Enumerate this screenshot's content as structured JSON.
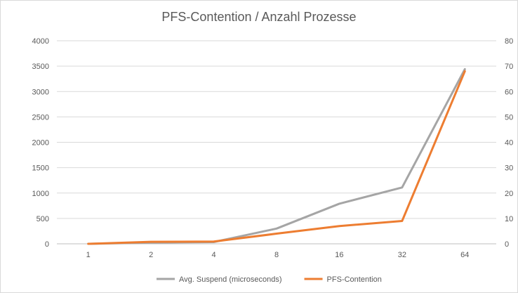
{
  "chart_data": {
    "type": "line",
    "title": "PFS-Contention / Anzahl Prozesse",
    "categories": [
      "1",
      "2",
      "4",
      "8",
      "16",
      "32",
      "64"
    ],
    "y_left": {
      "ticks": [
        "0",
        "500",
        "1000",
        "1500",
        "2000",
        "2500",
        "3000",
        "3500",
        "4000"
      ],
      "min": 0,
      "max": 4000
    },
    "y_right": {
      "ticks": [
        "0",
        "10",
        "20",
        "30",
        "40",
        "50",
        "60",
        "70",
        "80"
      ],
      "min": 0,
      "max": 80
    },
    "series": [
      {
        "name": "Avg. Suspend (microseconds)",
        "axis": "left",
        "color": "#a5a5a5",
        "values": [
          0,
          25,
          35,
          300,
          790,
          1110,
          3440
        ]
      },
      {
        "name": "PFS-Contention",
        "axis": "right",
        "color": "#ed7d31",
        "values": [
          0,
          0.8,
          0.9,
          4,
          7,
          9,
          68
        ]
      }
    ],
    "grid": true,
    "legend_position": "bottom"
  }
}
